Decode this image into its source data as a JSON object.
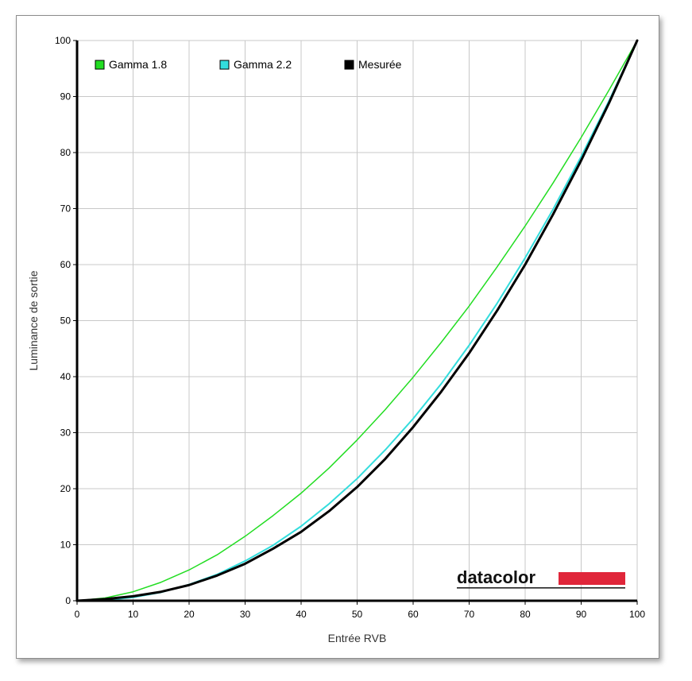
{
  "chart_data": {
    "type": "line",
    "title": "",
    "xlabel": "Entrée RVB",
    "ylabel": "Luminance de sortie",
    "xlim": [
      0,
      100
    ],
    "ylim": [
      0,
      100
    ],
    "xticks": [
      0,
      10,
      20,
      30,
      40,
      50,
      60,
      70,
      80,
      90,
      100
    ],
    "yticks": [
      0,
      10,
      20,
      30,
      40,
      50,
      60,
      70,
      80,
      90,
      100
    ],
    "grid": true,
    "legend_position": "top-left",
    "series": [
      {
        "name": "Gamma 1.8",
        "color": "#22dd22",
        "x": [
          0,
          5,
          10,
          15,
          20,
          25,
          30,
          35,
          40,
          45,
          50,
          55,
          60,
          65,
          70,
          75,
          80,
          85,
          90,
          95,
          100
        ],
        "y": [
          0,
          0.5,
          1.6,
          3.3,
          5.5,
          8.2,
          11.5,
          15.2,
          19.2,
          23.7,
          28.7,
          34.1,
          39.9,
          46.1,
          52.6,
          59.6,
          66.9,
          74.6,
          82.7,
          91.2,
          100
        ]
      },
      {
        "name": "Gamma 2.2",
        "color": "#33dddd",
        "x": [
          0,
          5,
          10,
          15,
          20,
          25,
          30,
          35,
          40,
          45,
          50,
          55,
          60,
          65,
          70,
          75,
          80,
          85,
          90,
          95,
          100
        ],
        "y": [
          0,
          0.1,
          0.6,
          1.5,
          2.9,
          4.7,
          7.1,
          9.9,
          13.3,
          17.3,
          21.8,
          26.9,
          32.5,
          38.7,
          45.6,
          53.1,
          61.2,
          69.9,
          79.3,
          89.3,
          100
        ]
      },
      {
        "name": "Mesurée",
        "color": "#000000",
        "x": [
          0,
          5,
          10,
          15,
          20,
          25,
          30,
          35,
          40,
          45,
          50,
          55,
          60,
          65,
          70,
          75,
          80,
          85,
          90,
          95,
          100
        ],
        "y": [
          0,
          0.3,
          0.8,
          1.6,
          2.8,
          4.5,
          6.6,
          9.3,
          12.3,
          16.0,
          20.3,
          25.3,
          31.0,
          37.3,
          44.2,
          51.8,
          60.0,
          69.0,
          78.6,
          88.9,
          100
        ]
      }
    ]
  },
  "branding": {
    "logo_text": "datacolor",
    "bar_color": "#e0263a"
  }
}
